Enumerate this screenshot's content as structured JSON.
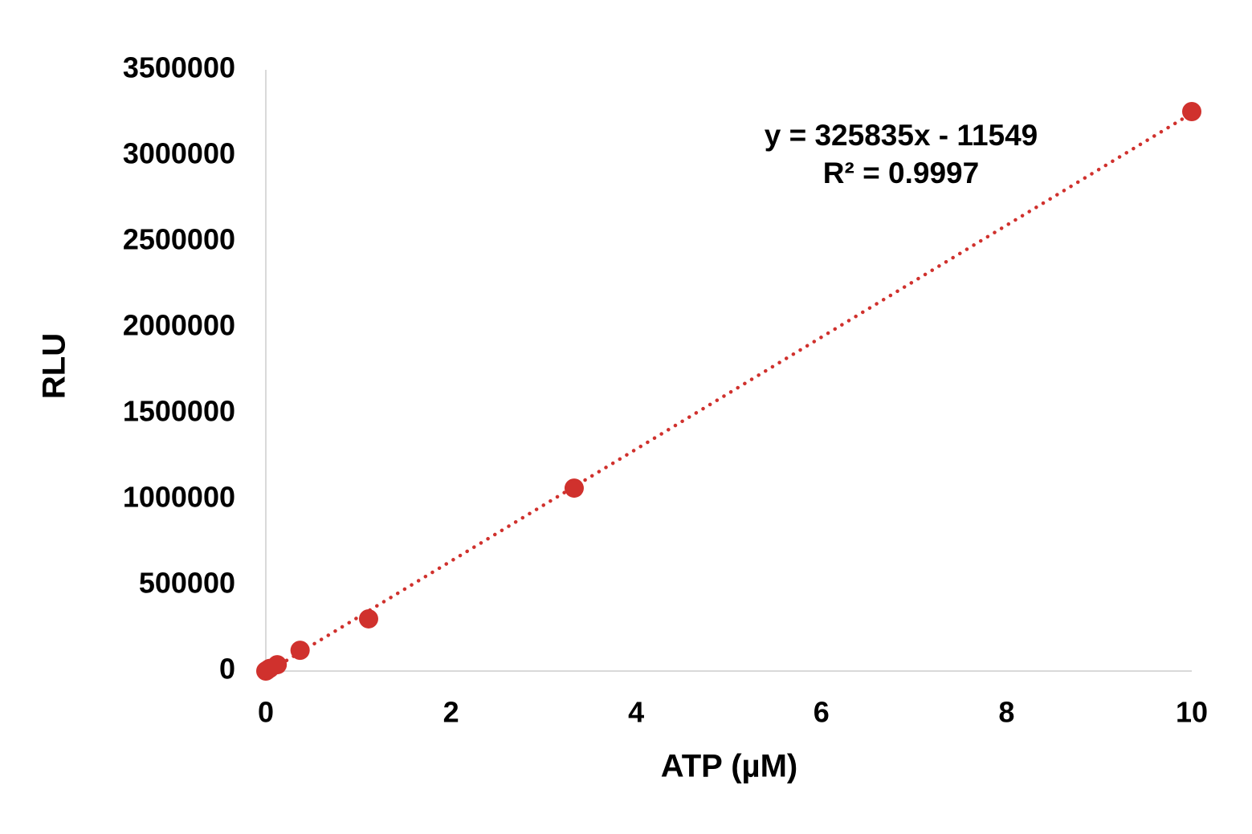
{
  "chart_data": {
    "type": "scatter",
    "x_label": "ATP (µM)",
    "y_label": "RLU",
    "series": [
      {
        "name": "ATP",
        "color": "#d0312d",
        "x": [
          0,
          0.0137,
          0.041,
          0.123,
          0.37,
          1.11,
          3.33,
          10
        ],
        "values": [
          0,
          5000,
          15000,
          37000,
          121000,
          304000,
          1065000,
          3257000
        ]
      }
    ],
    "xlim": [
      0,
      10
    ],
    "xticks": [
      0,
      2,
      4,
      6,
      8,
      10
    ],
    "ylim": [
      0,
      3500000
    ],
    "yticks": [
      0,
      500000,
      1000000,
      1500000,
      2000000,
      2500000,
      3000000,
      3500000
    ],
    "grid": false,
    "trendline": {
      "equation": "y = 325835x - 11549",
      "r_squared": "R² = 0.9997",
      "slope": 325835,
      "intercept": -11549,
      "color": "#d0312d"
    }
  }
}
